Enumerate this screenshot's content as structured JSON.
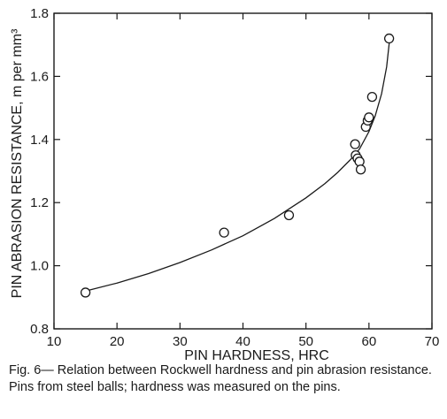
{
  "chart_data": {
    "type": "scatter",
    "xlabel": "PIN HARDNESS, HRC",
    "ylabel": "PIN ABRASION RESISTANCE, m per mm³",
    "xlim": [
      10,
      70
    ],
    "ylim": [
      0.8,
      1.8
    ],
    "xticks": [
      "10",
      "20",
      "30",
      "40",
      "50",
      "60",
      "70"
    ],
    "yticks": [
      "0.8",
      "1.0",
      "1.2",
      "1.4",
      "1.6",
      "1.8"
    ],
    "grid": false,
    "points": [
      {
        "x": 15,
        "y": 0.915
      },
      {
        "x": 37,
        "y": 1.105
      },
      {
        "x": 47.3,
        "y": 1.16
      },
      {
        "x": 57.8,
        "y": 1.385
      },
      {
        "x": 57.9,
        "y": 1.35
      },
      {
        "x": 58.2,
        "y": 1.34
      },
      {
        "x": 58.5,
        "y": 1.33
      },
      {
        "x": 58.7,
        "y": 1.305
      },
      {
        "x": 59.5,
        "y": 1.44
      },
      {
        "x": 59.8,
        "y": 1.46
      },
      {
        "x": 60,
        "y": 1.47
      },
      {
        "x": 60.5,
        "y": 1.535
      },
      {
        "x": 63.2,
        "y": 1.72
      }
    ],
    "fit_curve": [
      {
        "x": 15,
        "y": 0.92
      },
      {
        "x": 20,
        "y": 0.945
      },
      {
        "x": 25,
        "y": 0.975
      },
      {
        "x": 30,
        "y": 1.01
      },
      {
        "x": 35,
        "y": 1.05
      },
      {
        "x": 40,
        "y": 1.095
      },
      {
        "x": 45,
        "y": 1.15
      },
      {
        "x": 50,
        "y": 1.215
      },
      {
        "x": 53,
        "y": 1.26
      },
      {
        "x": 55,
        "y": 1.295
      },
      {
        "x": 57,
        "y": 1.335
      },
      {
        "x": 58.5,
        "y": 1.37
      },
      {
        "x": 60,
        "y": 1.425
      },
      {
        "x": 61,
        "y": 1.475
      },
      {
        "x": 62,
        "y": 1.545
      },
      {
        "x": 62.8,
        "y": 1.63
      },
      {
        "x": 63.3,
        "y": 1.72
      }
    ]
  },
  "caption": "Fig. 6— Relation between Rockwell hardness and pin abrasion resistance. Pins from steel balls; hardness was measured on the pins."
}
